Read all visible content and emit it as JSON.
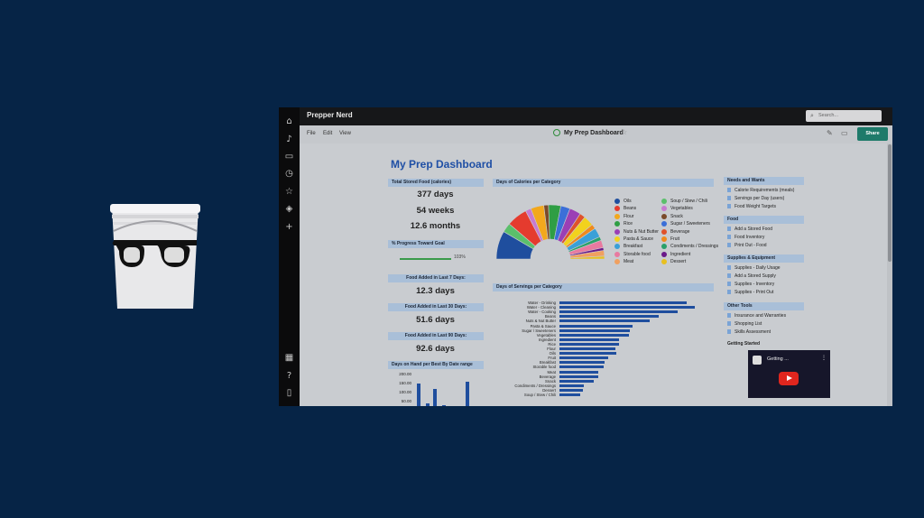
{
  "app": {
    "brand": "Prepper Nerd",
    "search_placeholder": "Search...",
    "menu": [
      "File",
      "Edit",
      "View"
    ],
    "doc_title": "My Prep Dashboard",
    "share_label": "Share",
    "rail_icons": [
      "home-icon",
      "bell-icon",
      "folder-icon",
      "clock-icon",
      "star-icon",
      "templates-icon",
      "plus-icon",
      "apps-grid-icon",
      "help-icon",
      "doc-icon"
    ]
  },
  "dashboard": {
    "title": "My Prep Dashboard",
    "total_stored": {
      "header": "Total Stored Food (calories)",
      "values": [
        "377 days",
        "54 weeks",
        "12.6 months"
      ]
    },
    "progress": {
      "header": "% Progress Toward Goal",
      "label": "103%",
      "value": 1.03
    },
    "added": [
      {
        "header": "Food Added in Last 7 Days:",
        "value": "12.3 days"
      },
      {
        "header": "Food Added in Last 30 Days:",
        "value": "51.6 days"
      },
      {
        "header": "Food Added in Last 90 Days:",
        "value": "92.6 days"
      }
    ],
    "best_by": {
      "header": "Days on Hand per Best By Date range",
      "ticks": [
        "200.00",
        "150.00",
        "100.00",
        "50.00",
        "0.00"
      ]
    },
    "calories_header": "Days of Calories per Category",
    "servings_header": "Days of Servings per Category",
    "sidebar": [
      {
        "header": "Needs and Wants",
        "links": [
          "Calorie Requirements (meals)",
          "Servings per Day (users)",
          "Food Weight Targets"
        ]
      },
      {
        "header": "Food",
        "links": [
          "Add a Stored Food",
          "Food Inventory",
          "Print Out - Food"
        ]
      },
      {
        "header": "Supplies & Equipment",
        "links": [
          "Supplies - Daily Usage",
          "Add a Stored Supply",
          "Supplies - Inventory",
          "Supplies - Print Out"
        ]
      },
      {
        "header": "Other Tools",
        "links": [
          "Insurance and Warranties",
          "Shopping List",
          "Skills Assessment"
        ]
      }
    ],
    "getting_started": {
      "header": "Getting Started",
      "video_title": "Getting ..."
    }
  },
  "chart_data": [
    {
      "type": "pie",
      "title": "Days of Calories per Category",
      "categories": [
        "Oils",
        "Soup / Stew / Chili",
        "Beans",
        "Vegetables",
        "Flour",
        "Snack",
        "Rice",
        "Sugar / Sweeteners",
        "Nuts & Nut Butter",
        "Beverage",
        "Pasta & Sauce",
        "Fruit",
        "Breakfast",
        "Condiments / Dressings",
        "Storable food",
        "Ingredient",
        "Meat",
        "Dessert"
      ],
      "colors": [
        "#1f4e9e",
        "#5bbf6b",
        "#e53b2e",
        "#c87ad0",
        "#f2a81d",
        "#7a4a2a",
        "#2f9e44",
        "#3b6fd8",
        "#9b3fb5",
        "#e0522a",
        "#f2d21d",
        "#f08a1c",
        "#3aa0d8",
        "#2aa06a",
        "#e87aa0",
        "#6a1a8a",
        "#f0a060",
        "#e8c020"
      ],
      "values": [
        30,
        10,
        22,
        6,
        14,
        5,
        13,
        10,
        12,
        6,
        11,
        5,
        10,
        4,
        8,
        3,
        6,
        3
      ]
    },
    {
      "type": "bar",
      "title": "Days of Servings per Category",
      "categories": [
        "Water - Drinking",
        "Water - Cleaning",
        "Water - Cooking",
        "Beans",
        "Nuts & Nut Butter",
        "Pasta & Sauce",
        "Sugar / Sweeteners",
        "Vegetables",
        "Ingredient",
        "Rice",
        "Flour",
        "Oils",
        "Fruit",
        "Breakfast",
        "Storable food",
        "Meat",
        "Beverage",
        "Snack",
        "Condiments / Dressings",
        "Dessert",
        "Soup / Stew / Chili"
      ],
      "values": [
        150,
        160,
        140,
        117,
        107,
        86,
        83,
        82,
        70,
        70,
        66,
        67,
        58,
        53,
        52,
        46,
        46,
        40,
        29,
        28,
        24
      ]
    },
    {
      "type": "bar",
      "title": "Days on Hand per Best By Date range",
      "values": [
        150,
        40,
        120,
        30,
        10,
        160
      ],
      "ylim": [
        0,
        200
      ]
    }
  ]
}
